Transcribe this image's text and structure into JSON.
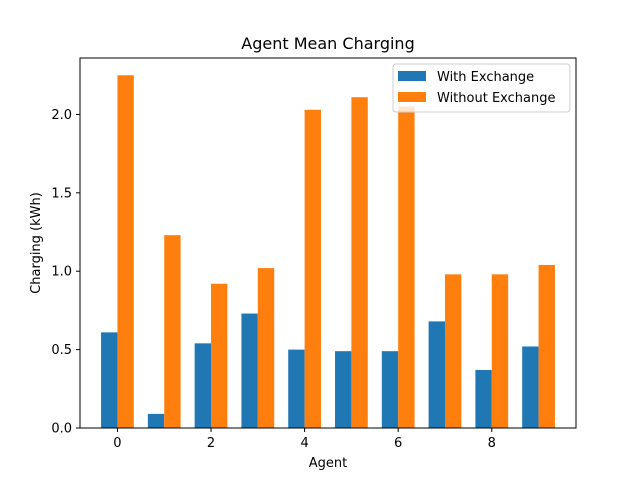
{
  "chart_data": {
    "type": "bar",
    "title": "Agent Mean Charging",
    "xlabel": "Agent",
    "ylabel": "Charging (kWh)",
    "x": [
      0,
      1,
      2,
      3,
      4,
      5,
      6,
      7,
      8,
      9
    ],
    "xticks": [
      "0",
      "2",
      "4",
      "6",
      "8"
    ],
    "yticks": [
      "0.0",
      "0.5",
      "1.0",
      "1.5",
      "2.0"
    ],
    "xlim": [
      -0.8,
      9.8
    ],
    "ylim": [
      0,
      2.36
    ],
    "grid": false,
    "legend_position": "top-right",
    "series": [
      {
        "name": "With Exchange",
        "color": "#1f77b4",
        "values": [
          0.61,
          0.09,
          0.54,
          0.73,
          0.5,
          0.49,
          0.49,
          0.68,
          0.37,
          0.52
        ]
      },
      {
        "name": "Without Exchange",
        "color": "#ff7f0e",
        "values": [
          2.25,
          1.23,
          0.92,
          1.02,
          2.03,
          2.11,
          2.05,
          0.98,
          0.98,
          1.04
        ]
      }
    ]
  }
}
